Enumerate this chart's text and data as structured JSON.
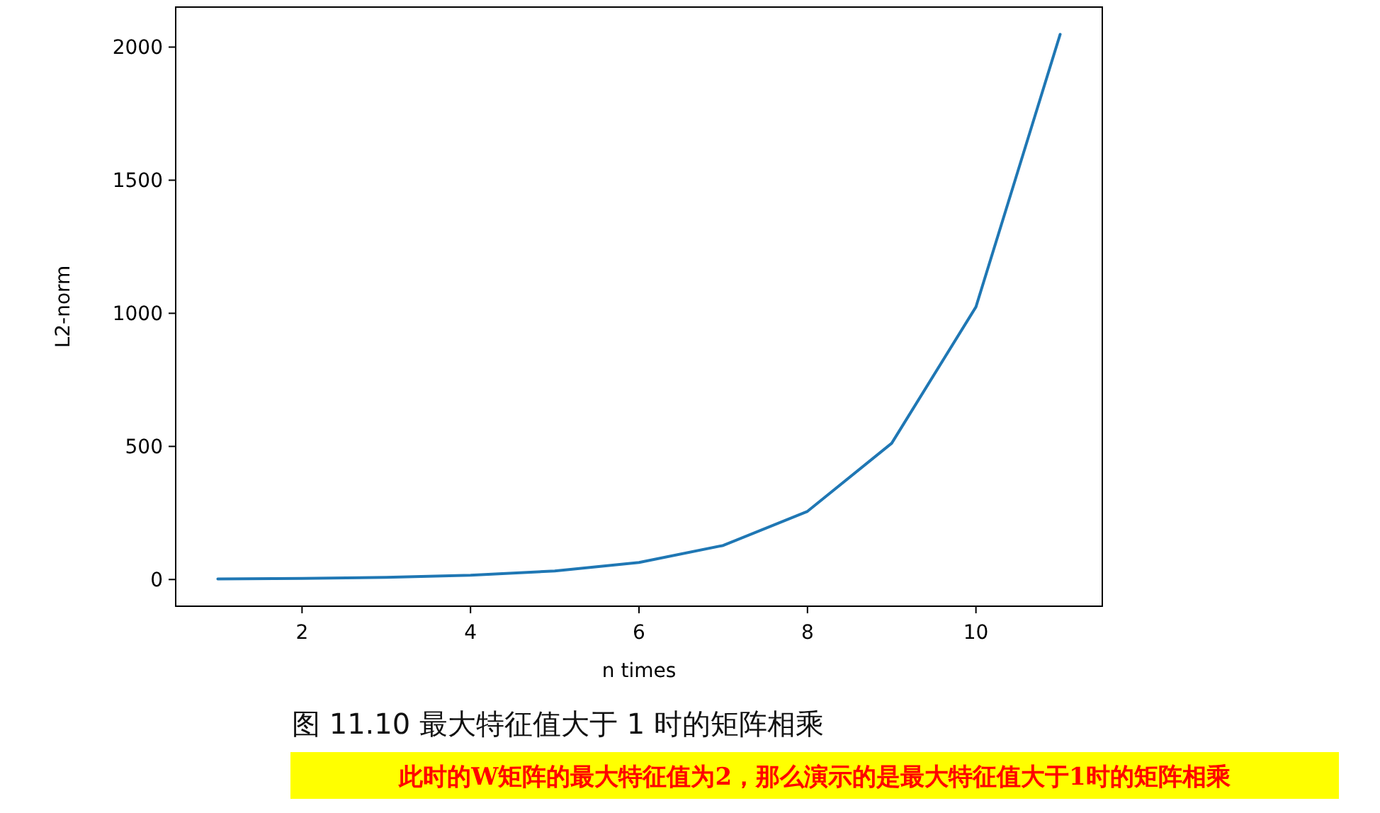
{
  "chart_data": {
    "type": "line",
    "xlabel": "n times",
    "ylabel": "L2-norm",
    "x": [
      1,
      2,
      3,
      4,
      5,
      6,
      7,
      8,
      9,
      10,
      11
    ],
    "series": [
      {
        "color": "#1f77b4",
        "values": [
          2,
          4,
          8,
          16,
          32,
          64,
          128,
          256,
          512,
          1024,
          2048
        ]
      }
    ],
    "xlim": [
      0.5,
      11.5
    ],
    "ylim": [
      -100.3,
      2150.3
    ],
    "xticks": [
      2,
      4,
      6,
      8,
      10
    ],
    "yticks": [
      0,
      500,
      1000,
      1500,
      2000
    ],
    "annotations": [
      "图 11.10 最大特征值大于 1 时的矩阵相乘",
      "此时的W矩阵的最大特征值为2，那么演示的是最大特征值大于1时的矩阵相乘"
    ]
  }
}
